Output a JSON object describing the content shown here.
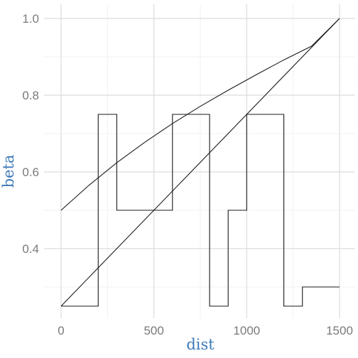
{
  "chart_data": {
    "type": "line",
    "title": "",
    "xlabel": "dist",
    "ylabel": "beta",
    "xlim": [
      0,
      1500
    ],
    "ylim": [
      0.25,
      1.0
    ],
    "grid": true,
    "x_ticks": [
      0,
      500,
      1000,
      1500
    ],
    "x_tick_labels": [
      "0",
      "500",
      "1000",
      "1500"
    ],
    "y_ticks": [
      0.4,
      0.6,
      0.8,
      1.0
    ],
    "y_tick_labels": [
      "0.4",
      "0.6",
      "0.8",
      "1.0"
    ],
    "series": [
      {
        "shape": "step",
        "x": [
          0,
          200,
          200,
          300,
          300,
          600,
          600,
          800,
          800,
          900,
          900,
          1000,
          1000,
          1200,
          1200,
          1300,
          1300,
          1500
        ],
        "y": [
          0.25,
          0.25,
          0.75,
          0.75,
          0.5,
          0.5,
          0.75,
          0.75,
          0.25,
          0.25,
          0.5,
          0.5,
          0.75,
          0.75,
          0.25,
          0.25,
          0.3,
          0.3
        ]
      },
      {
        "shape": "line",
        "x": [
          0,
          1500
        ],
        "y": [
          0.25,
          1.0
        ]
      },
      {
        "shape": "curve",
        "x": [
          0,
          150,
          300,
          450,
          600,
          750,
          900,
          1050,
          1200,
          1350,
          1500
        ],
        "y": [
          0.5,
          0.565,
          0.624,
          0.677,
          0.726,
          0.771,
          0.813,
          0.853,
          0.892,
          0.928,
          1.0
        ]
      }
    ]
  }
}
